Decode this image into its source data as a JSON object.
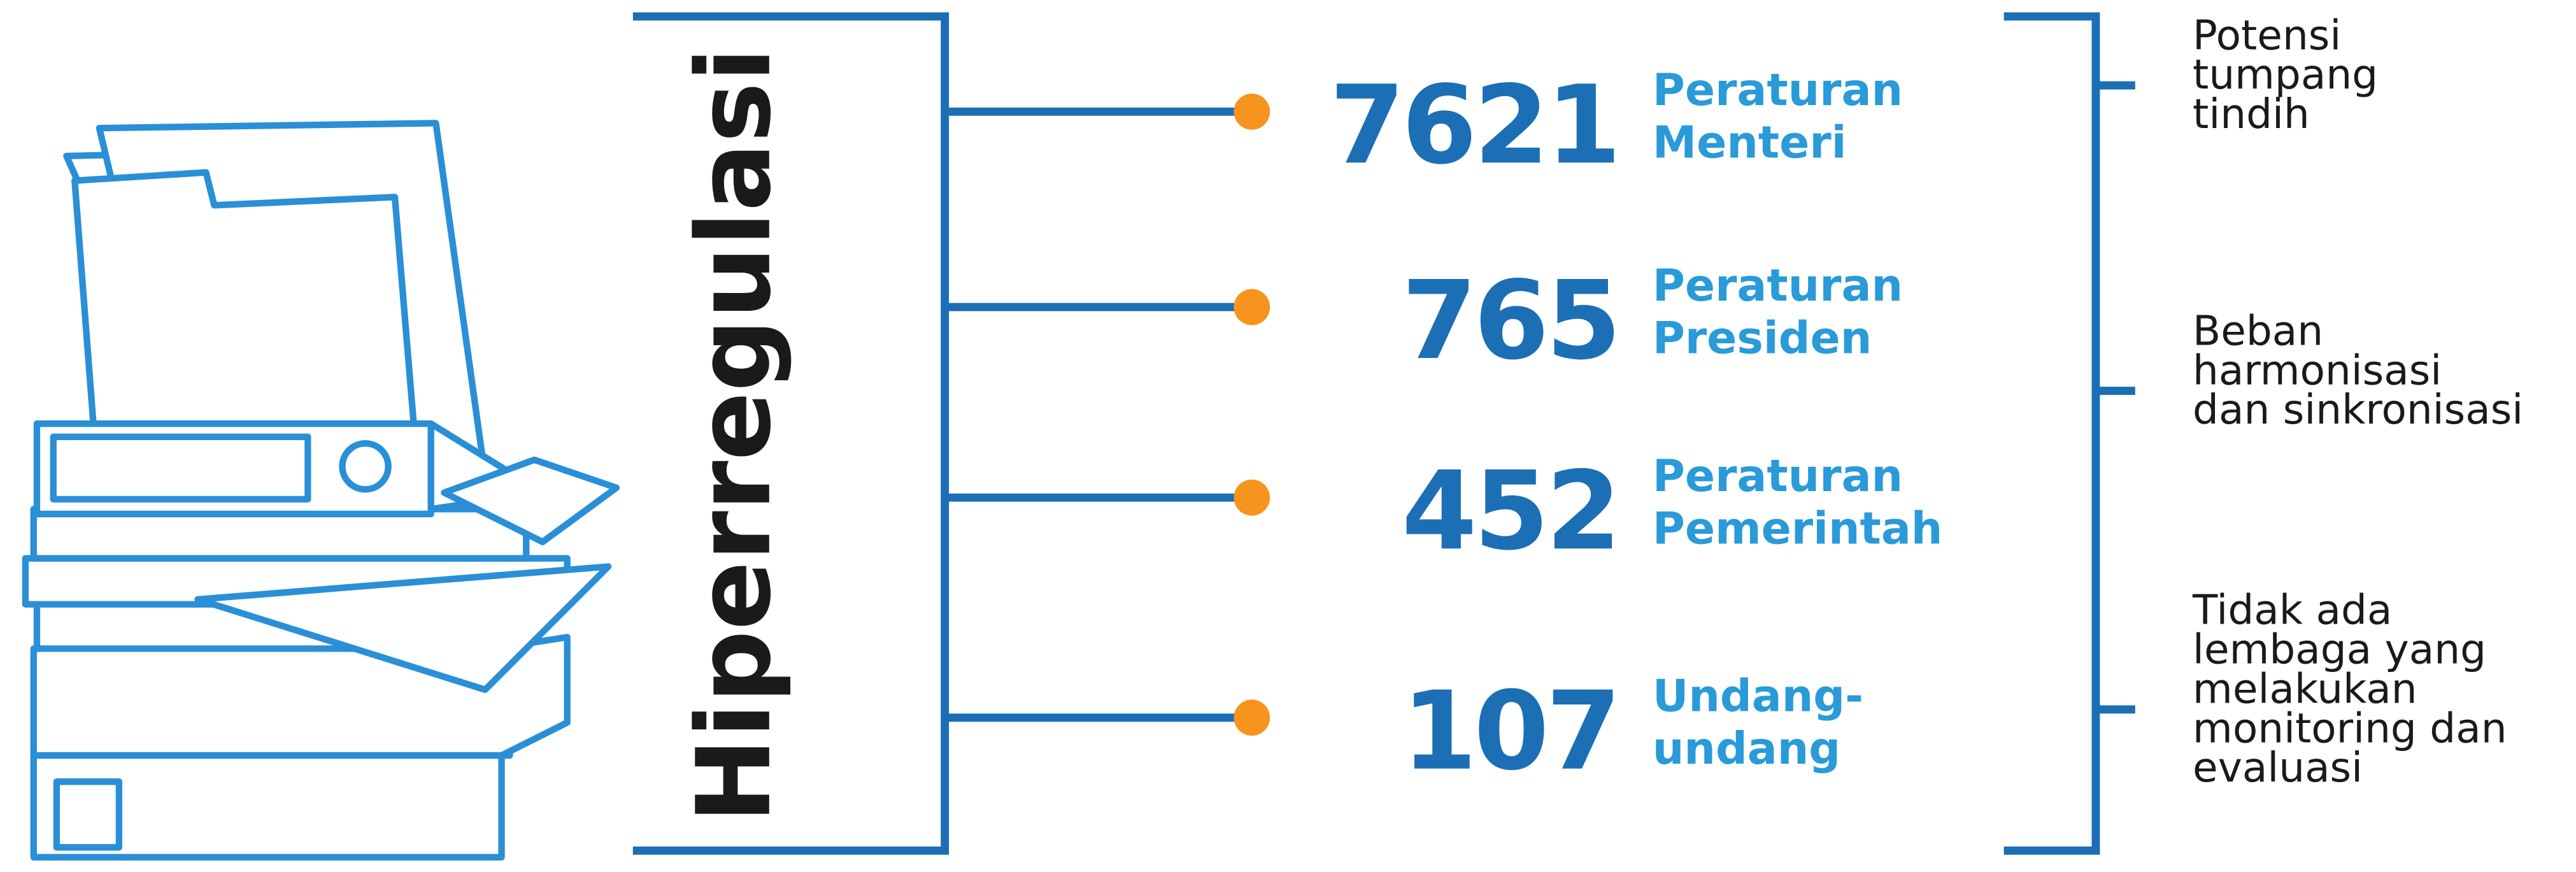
{
  "title": "Hiperregulasi",
  "items": [
    {
      "number": 7621,
      "label": [
        "Peraturan",
        "Menteri"
      ]
    },
    {
      "number": 765,
      "label": [
        "Peraturan",
        "Presiden"
      ]
    },
    {
      "number": 452,
      "label": [
        "Peraturan",
        "Pemerintah"
      ]
    },
    {
      "number": 107,
      "label": [
        "Undang-",
        "undang"
      ]
    }
  ],
  "notes": [
    [
      "Potensi",
      "tumpang",
      "tindih"
    ],
    [
      "Beban",
      "harmonisasi",
      "dan sinkronisasi"
    ],
    [
      "Tidak ada",
      "lembaga yang",
      "melakukan",
      "monitoring dan",
      "evaluasi"
    ]
  ]
}
